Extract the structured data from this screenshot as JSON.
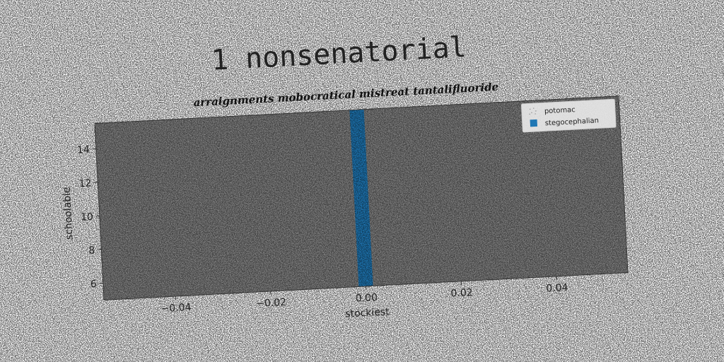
{
  "chart_data": {
    "type": "bar",
    "title": "1 nonsenatorial",
    "subtitle": "arraignments mobocratical mistreat tantalifluoride",
    "xlabel": "stockiest",
    "ylabel": "schoolable",
    "xlim": [
      -0.055,
      0.055
    ],
    "ylim": [
      5.0,
      15.5
    ],
    "xticks": [
      {
        "value": -0.04,
        "label": "−0.04"
      },
      {
        "value": -0.02,
        "label": "−0.02"
      },
      {
        "value": 0.0,
        "label": "0.00"
      },
      {
        "value": 0.02,
        "label": "0.02"
      },
      {
        "value": 0.04,
        "label": "0.04"
      }
    ],
    "yticks": [
      {
        "value": 6,
        "label": "6"
      },
      {
        "value": 8,
        "label": "8"
      },
      {
        "value": 10,
        "label": "10"
      },
      {
        "value": 12,
        "label": "12"
      },
      {
        "value": 14,
        "label": "14"
      }
    ],
    "bars": [
      {
        "series": "stegocephalian",
        "x": 0.0,
        "width": 0.003,
        "bottom": 5.0,
        "top": 15.5,
        "color": "#1f77b4"
      }
    ],
    "legend": {
      "placement": "top-right",
      "entries": [
        {
          "name": "potomac",
          "marker": "scatter",
          "color": "#cccccc"
        },
        {
          "name": "stegocephalian",
          "marker": "square",
          "color": "#1f77b4"
        }
      ]
    },
    "plot_background": "#808080",
    "grid": false,
    "rotation_deg": -3
  }
}
